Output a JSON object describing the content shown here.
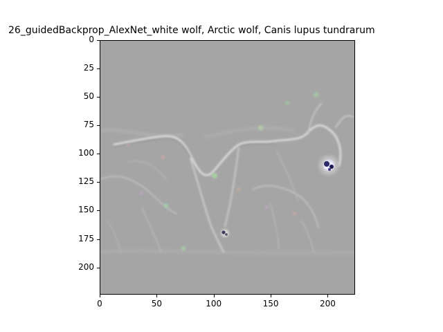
{
  "image": {
    "title": "26_guidedBackprop_AlexNet_white wolf, Arctic wolf, Canis lupus tundrarum",
    "background_color": "#a5a5a5",
    "axes": {
      "x_ticks": [
        "0",
        "50",
        "100",
        "150",
        "200"
      ],
      "y_ticks": [
        "0",
        "25",
        "50",
        "75",
        "100",
        "125",
        "150",
        "175",
        "200"
      ],
      "x_range": [
        0,
        224
      ],
      "y_range": [
        0,
        224
      ]
    }
  }
}
